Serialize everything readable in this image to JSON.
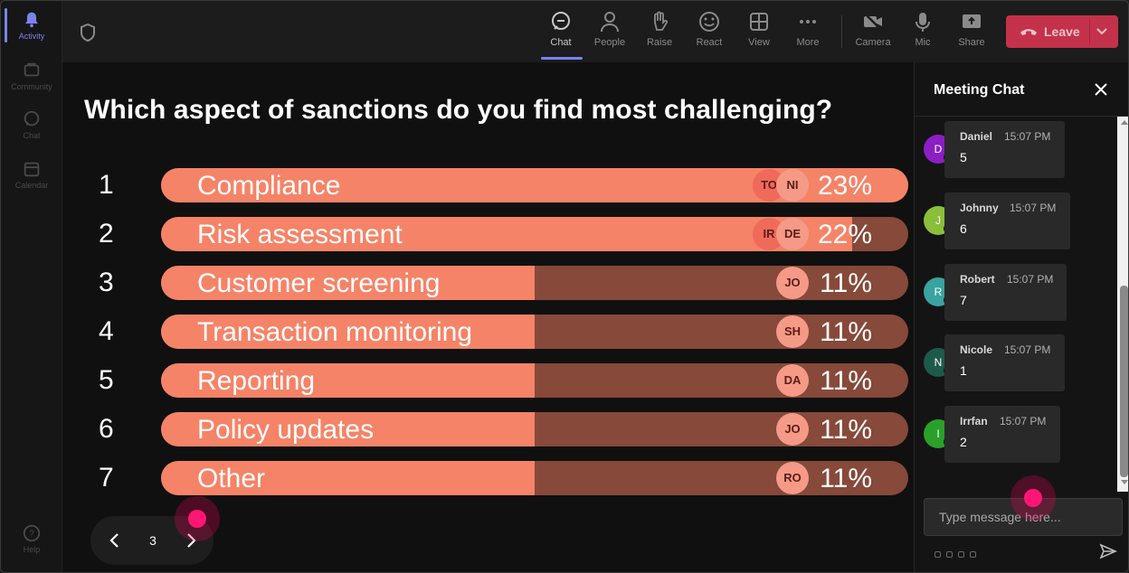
{
  "rail": {
    "items": [
      {
        "label": "Activity",
        "icon": "bell-icon"
      },
      {
        "label": "Community",
        "icon": "community-icon"
      },
      {
        "label": "Chat",
        "icon": "chat-icon"
      },
      {
        "label": "Calendar",
        "icon": "calendar-icon"
      }
    ],
    "help": {
      "label": "Help",
      "icon": "help-icon"
    }
  },
  "toolbar": {
    "buttons": [
      {
        "label": "Chat",
        "icon": "chat-icon"
      },
      {
        "label": "People",
        "icon": "people-icon"
      },
      {
        "label": "Raise",
        "icon": "raise-hand-icon"
      },
      {
        "label": "React",
        "icon": "smiley-icon"
      },
      {
        "label": "View",
        "icon": "grid-view-icon"
      },
      {
        "label": "More",
        "icon": "more-icon"
      },
      {
        "label": "Camera",
        "icon": "camera-off-icon"
      },
      {
        "label": "Mic",
        "icon": "mic-icon"
      },
      {
        "label": "Share",
        "icon": "share-icon"
      }
    ],
    "leave_label": "Leave",
    "leave_color": "#c4314b"
  },
  "poll": {
    "question": "Which aspect of sanctions do you find most challenging?",
    "rows": [
      {
        "num": "1",
        "label": "Compliance",
        "pct_text": "23%",
        "fill": 100,
        "chips": [
          "TO",
          "NI"
        ]
      },
      {
        "num": "2",
        "label": "Risk assessment",
        "pct_text": "22%",
        "fill": 92.5,
        "chips": [
          "IR",
          "DE"
        ]
      },
      {
        "num": "3",
        "label": "Customer screening",
        "pct_text": "11%",
        "fill": 50,
        "chips": [
          "JO"
        ]
      },
      {
        "num": "4",
        "label": "Transaction monitoring",
        "pct_text": "11%",
        "fill": 50,
        "chips": [
          "SH"
        ]
      },
      {
        "num": "5",
        "label": "Reporting",
        "pct_text": "11%",
        "fill": 50,
        "chips": [
          "DA"
        ]
      },
      {
        "num": "6",
        "label": "Policy updates",
        "pct_text": "11%",
        "fill": 50,
        "chips": [
          "JO"
        ]
      },
      {
        "num": "7",
        "label": "Other",
        "pct_text": "11%",
        "fill": 50,
        "chips": [
          "RO"
        ]
      }
    ],
    "page": "3",
    "bar_color": "#f58367",
    "track_color": "#86493a"
  },
  "chat": {
    "title": "Meeting Chat",
    "messages": [
      {
        "initial": "D",
        "name": "Daniel",
        "time": "15:07 PM",
        "text": "5",
        "avatar_color": "#8a1fc4"
      },
      {
        "initial": "J",
        "name": "Johnny",
        "time": "15:07 PM",
        "text": "6",
        "avatar_color": "#8bbf3a"
      },
      {
        "initial": "R",
        "name": "Robert",
        "time": "15:07 PM",
        "text": "7",
        "avatar_color": "#3aa39f"
      },
      {
        "initial": "N",
        "name": "Nicole",
        "time": "15:07 PM",
        "text": "1",
        "avatar_color": "#1e5a4a"
      },
      {
        "initial": "I",
        "name": "Irrfan",
        "time": "15:07 PM",
        "text": "2",
        "avatar_color": "#2aa02a"
      }
    ],
    "input_placeholder": "Type message here..."
  }
}
